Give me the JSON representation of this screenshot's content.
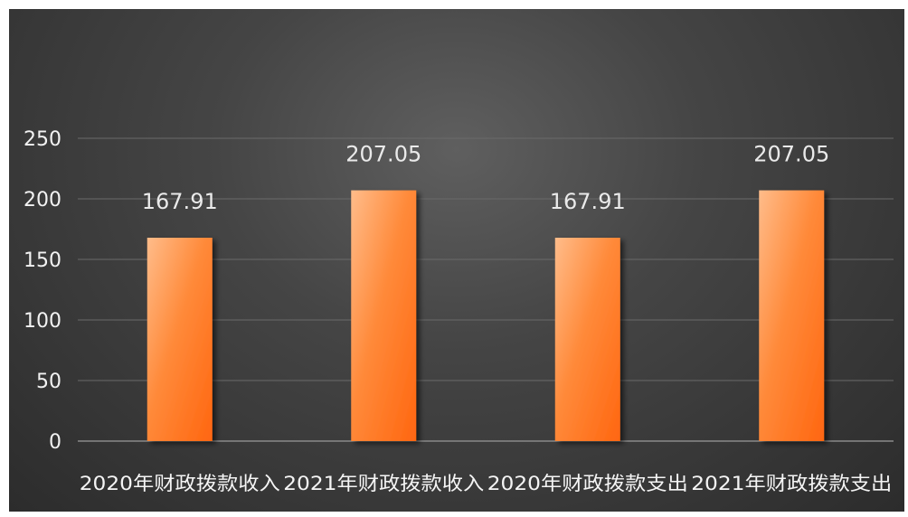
{
  "chart_data": {
    "type": "bar",
    "categories": [
      "2020年财政拨款收入",
      "2021年财政拨款收入",
      "2020年财政拨款支出",
      "2021年财政拨款支出"
    ],
    "values": [
      167.91,
      207.05,
      167.91,
      207.05
    ],
    "data_labels": [
      "167.91",
      "207.05",
      "167.91",
      "207.05"
    ],
    "ylim": [
      0,
      250
    ],
    "yticks": [
      0,
      50,
      100,
      150,
      200,
      250
    ],
    "title": "",
    "xlabel": "",
    "ylabel": "",
    "grid": true,
    "legend": "none",
    "colors": {
      "bar_light": "#ffb27a",
      "bar_dark": "#ff6a10",
      "background": "#3a3a3a"
    }
  }
}
